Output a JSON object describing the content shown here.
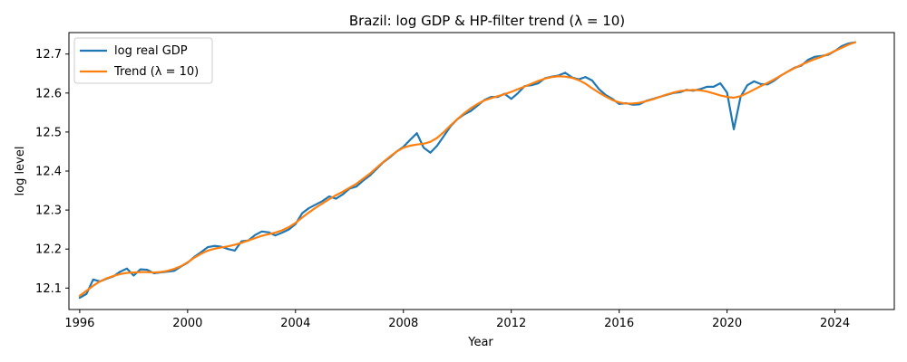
{
  "chart_data": {
    "type": "line",
    "title": "Brazil: log GDP & HP-filter trend  (λ = 10)",
    "xlabel": "Year",
    "ylabel": "log level",
    "xlim": [
      1995.6,
      2026.2
    ],
    "ylim": [
      12.045,
      12.755
    ],
    "xticks": [
      1996,
      2000,
      2004,
      2008,
      2012,
      2016,
      2020,
      2024
    ],
    "xtick_labels": [
      "1996",
      "2000",
      "2004",
      "2008",
      "2012",
      "2016",
      "2020",
      "2024"
    ],
    "yticks": [
      12.1,
      12.2,
      12.3,
      12.4,
      12.5,
      12.6,
      12.7
    ],
    "ytick_labels": [
      "12.1",
      "12.2",
      "12.3",
      "12.4",
      "12.5",
      "12.6",
      "12.7"
    ],
    "legend_position": "top-left",
    "x": [
      1996.0,
      1996.25,
      1996.5,
      1996.75,
      1997.0,
      1997.25,
      1997.5,
      1997.75,
      1998.0,
      1998.25,
      1998.5,
      1998.75,
      1999.0,
      1999.25,
      1999.5,
      1999.75,
      2000.0,
      2000.25,
      2000.5,
      2000.75,
      2001.0,
      2001.25,
      2001.5,
      2001.75,
      2002.0,
      2002.25,
      2002.5,
      2002.75,
      2003.0,
      2003.25,
      2003.5,
      2003.75,
      2004.0,
      2004.25,
      2004.5,
      2004.75,
      2005.0,
      2005.25,
      2005.5,
      2005.75,
      2006.0,
      2006.25,
      2006.5,
      2006.75,
      2007.0,
      2007.25,
      2007.5,
      2007.75,
      2008.0,
      2008.25,
      2008.5,
      2008.75,
      2009.0,
      2009.25,
      2009.5,
      2009.75,
      2010.0,
      2010.25,
      2010.5,
      2010.75,
      2011.0,
      2011.25,
      2011.5,
      2011.75,
      2012.0,
      2012.25,
      2012.5,
      2012.75,
      2013.0,
      2013.25,
      2013.5,
      2013.75,
      2014.0,
      2014.25,
      2014.5,
      2014.75,
      2015.0,
      2015.25,
      2015.5,
      2015.75,
      2016.0,
      2016.25,
      2016.5,
      2016.75,
      2017.0,
      2017.25,
      2017.5,
      2017.75,
      2018.0,
      2018.25,
      2018.5,
      2018.75,
      2019.0,
      2019.25,
      2019.5,
      2019.75,
      2020.0,
      2020.25,
      2020.5,
      2020.75,
      2021.0,
      2021.25,
      2021.5,
      2021.75,
      2022.0,
      2022.25,
      2022.5,
      2022.75,
      2023.0,
      2023.25,
      2023.5,
      2023.75,
      2024.0,
      2024.25,
      2024.5,
      2024.75
    ],
    "series": [
      {
        "name": "log real GDP",
        "color": "#1f77b4",
        "values": [
          12.075,
          12.085,
          12.122,
          12.117,
          12.124,
          12.13,
          12.142,
          12.15,
          12.132,
          12.148,
          12.147,
          12.138,
          12.14,
          12.142,
          12.144,
          12.155,
          12.165,
          12.18,
          12.192,
          12.205,
          12.208,
          12.206,
          12.2,
          12.196,
          12.22,
          12.222,
          12.236,
          12.245,
          12.243,
          12.235,
          12.242,
          12.25,
          12.264,
          12.292,
          12.305,
          12.314,
          12.323,
          12.335,
          12.329,
          12.34,
          12.355,
          12.36,
          12.375,
          12.388,
          12.405,
          12.422,
          12.435,
          12.45,
          12.462,
          12.48,
          12.497,
          12.46,
          12.447,
          12.465,
          12.49,
          12.515,
          12.533,
          12.545,
          12.554,
          12.568,
          12.582,
          12.59,
          12.59,
          12.598,
          12.585,
          12.6,
          12.618,
          12.62,
          12.625,
          12.638,
          12.642,
          12.645,
          12.652,
          12.64,
          12.635,
          12.641,
          12.632,
          12.61,
          12.595,
          12.585,
          12.572,
          12.574,
          12.57,
          12.571,
          12.58,
          12.585,
          12.59,
          12.595,
          12.6,
          12.602,
          12.608,
          12.606,
          12.61,
          12.616,
          12.616,
          12.625,
          12.601,
          12.507,
          12.59,
          12.62,
          12.63,
          12.623,
          12.622,
          12.632,
          12.645,
          12.655,
          12.665,
          12.67,
          12.685,
          12.693,
          12.695,
          12.698,
          12.708,
          12.72,
          12.727,
          12.73
        ]
      },
      {
        "name": "Trend (λ = 10)",
        "color": "#ff7f0e",
        "values": [
          12.08,
          12.093,
          12.106,
          12.117,
          12.125,
          12.131,
          12.136,
          12.139,
          12.14,
          12.141,
          12.141,
          12.14,
          12.141,
          12.144,
          12.149,
          12.156,
          12.166,
          12.178,
          12.188,
          12.196,
          12.201,
          12.204,
          12.207,
          12.211,
          12.216,
          12.222,
          12.228,
          12.234,
          12.238,
          12.242,
          12.248,
          12.256,
          12.267,
          12.281,
          12.294,
          12.306,
          12.317,
          12.328,
          12.338,
          12.347,
          12.357,
          12.367,
          12.38,
          12.393,
          12.408,
          12.423,
          12.437,
          12.45,
          12.46,
          12.465,
          12.468,
          12.47,
          12.475,
          12.485,
          12.5,
          12.517,
          12.533,
          12.548,
          12.561,
          12.572,
          12.581,
          12.587,
          12.592,
          12.597,
          12.603,
          12.61,
          12.617,
          12.624,
          12.631,
          12.637,
          12.641,
          12.643,
          12.642,
          12.639,
          12.633,
          12.624,
          12.612,
          12.601,
          12.591,
          12.582,
          12.576,
          12.573,
          12.573,
          12.575,
          12.579,
          12.584,
          12.59,
          12.596,
          12.601,
          12.605,
          12.607,
          12.608,
          12.607,
          12.604,
          12.599,
          12.594,
          12.59,
          12.588,
          12.592,
          12.6,
          12.609,
          12.618,
          12.626,
          12.635,
          12.645,
          12.655,
          12.664,
          12.672,
          12.68,
          12.687,
          12.693,
          12.7,
          12.708,
          12.716,
          12.724,
          12.73
        ]
      }
    ]
  }
}
